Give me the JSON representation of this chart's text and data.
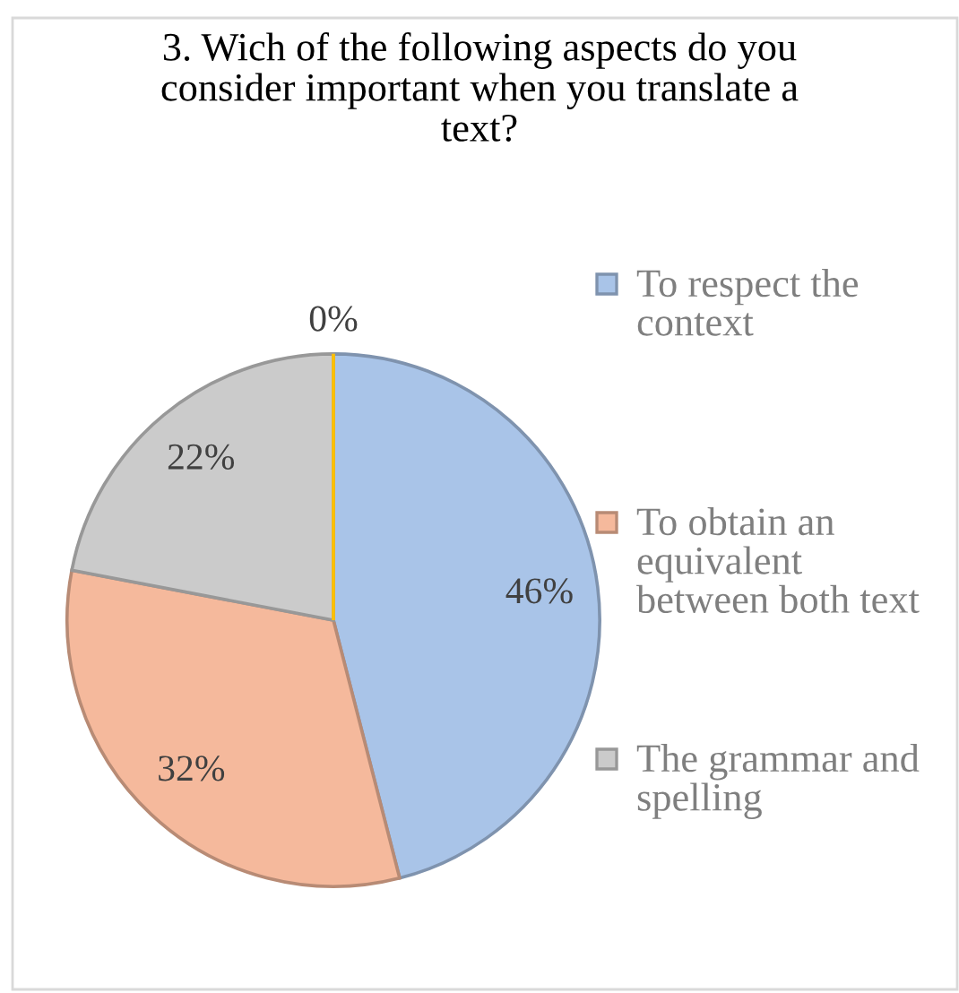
{
  "chart_data": {
    "type": "pie",
    "title": "3. Wich of the following aspects do you consider important when you translate a text?",
    "categories": [
      "To respect the context",
      "To obtain an equivalent between both text",
      "The grammar and spelling",
      null
    ],
    "values": [
      46,
      32,
      22,
      0
    ],
    "colors": [
      "#a9c4e8",
      "#f5b99c",
      "#cbcbcb",
      "#ffc000"
    ],
    "value_labels": [
      "46%",
      "32%",
      "22%",
      "0%"
    ],
    "legend": "right"
  }
}
